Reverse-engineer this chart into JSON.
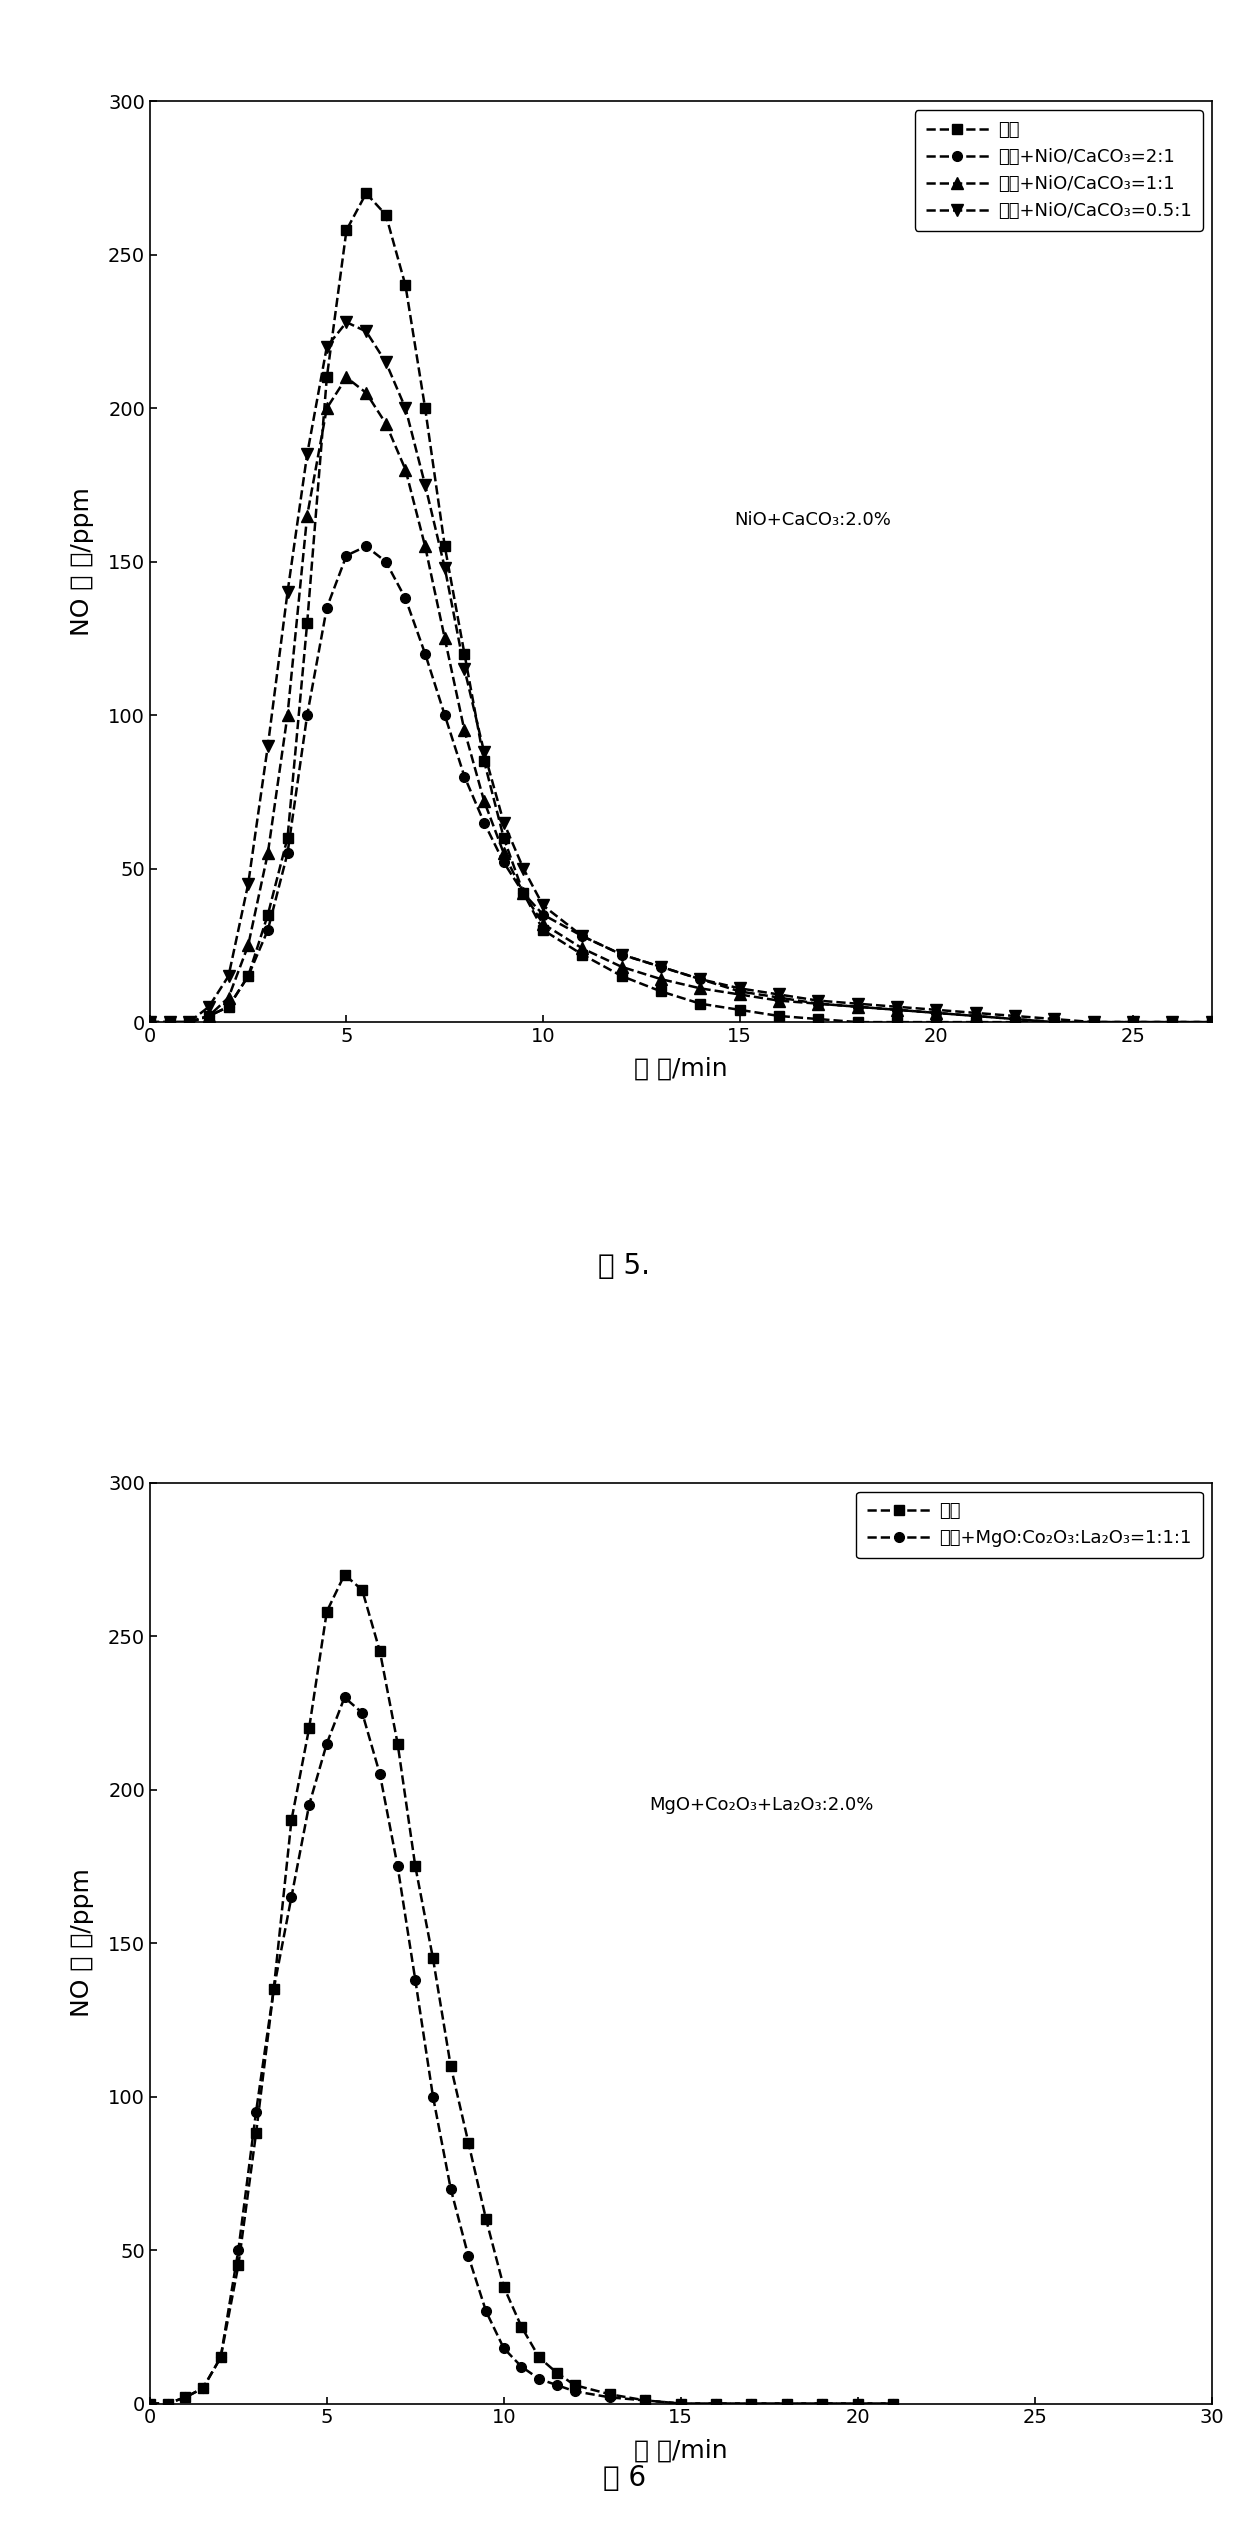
{
  "fig5": {
    "title": "图 5.",
    "xlabel": "时 间/min",
    "ylabel": "NO 浓 度/ppm",
    "xlim": [
      0,
      27
    ],
    "ylim": [
      0,
      300
    ],
    "xticks": [
      0,
      5,
      10,
      15,
      20,
      25
    ],
    "yticks": [
      0,
      50,
      100,
      150,
      200,
      250,
      300
    ],
    "annotation": "NiO+CaCO₃:2.0%",
    "series": [
      {
        "label": "焦炭",
        "marker": "s",
        "linestyle": "--",
        "color": "black",
        "x": [
          0,
          0.5,
          1,
          1.5,
          2,
          2.5,
          3,
          3.5,
          4,
          4.5,
          5,
          5.5,
          6,
          6.5,
          7,
          7.5,
          8,
          8.5,
          9,
          9.5,
          10,
          11,
          12,
          13,
          14,
          15,
          16,
          17,
          18,
          19,
          20,
          21,
          22,
          23,
          24,
          25,
          26,
          27
        ],
        "y": [
          0,
          0,
          0,
          2,
          5,
          15,
          35,
          60,
          130,
          210,
          258,
          270,
          263,
          240,
          200,
          155,
          120,
          85,
          60,
          42,
          30,
          22,
          15,
          10,
          6,
          4,
          2,
          1,
          0,
          0,
          0,
          0,
          0,
          0,
          0,
          0,
          0,
          0
        ]
      },
      {
        "label": "焦炭+NiO/CaCO₃=2:1",
        "marker": "o",
        "linestyle": "--",
        "color": "black",
        "x": [
          0,
          0.5,
          1,
          1.5,
          2,
          2.5,
          3,
          3.5,
          4,
          4.5,
          5,
          5.5,
          6,
          6.5,
          7,
          7.5,
          8,
          8.5,
          9,
          9.5,
          10,
          11,
          12,
          13,
          14,
          15,
          16,
          17,
          18,
          19,
          20,
          21,
          22,
          23,
          24,
          25,
          26,
          27
        ],
        "y": [
          0,
          0,
          0,
          2,
          5,
          15,
          30,
          55,
          100,
          135,
          152,
          155,
          150,
          138,
          120,
          100,
          80,
          65,
          52,
          42,
          35,
          28,
          22,
          18,
          14,
          10,
          8,
          6,
          5,
          4,
          3,
          2,
          1,
          0,
          0,
          0,
          0,
          0
        ]
      },
      {
        "label": "焦炭+NiO/CaCO₃=1:1",
        "marker": "^",
        "linestyle": "--",
        "color": "black",
        "x": [
          0,
          0.5,
          1,
          1.5,
          2,
          2.5,
          3,
          3.5,
          4,
          4.5,
          5,
          5.5,
          6,
          6.5,
          7,
          7.5,
          8,
          8.5,
          9,
          9.5,
          10,
          11,
          12,
          13,
          14,
          15,
          16,
          17,
          18,
          19,
          20,
          21,
          22,
          23,
          24,
          25,
          26,
          27
        ],
        "y": [
          0,
          0,
          0,
          2,
          8,
          25,
          55,
          100,
          165,
          200,
          210,
          205,
          195,
          180,
          155,
          125,
          95,
          72,
          55,
          42,
          32,
          24,
          18,
          14,
          11,
          9,
          7,
          6,
          5,
          4,
          3,
          2,
          1,
          0,
          0,
          0,
          0,
          0
        ]
      },
      {
        "label": "焦炭+NiO/CaCO₃=0.5:1",
        "marker": "v",
        "linestyle": "--",
        "color": "black",
        "x": [
          0,
          0.5,
          1,
          1.5,
          2,
          2.5,
          3,
          3.5,
          4,
          4.5,
          5,
          5.5,
          6,
          6.5,
          7,
          7.5,
          8,
          8.5,
          9,
          9.5,
          10,
          11,
          12,
          13,
          14,
          15,
          16,
          17,
          18,
          19,
          20,
          21,
          22,
          23,
          24,
          25,
          26,
          27
        ],
        "y": [
          0,
          0,
          0,
          5,
          15,
          45,
          90,
          140,
          185,
          220,
          228,
          225,
          215,
          200,
          175,
          148,
          115,
          88,
          65,
          50,
          38,
          28,
          22,
          18,
          14,
          11,
          9,
          7,
          6,
          5,
          4,
          3,
          2,
          1,
          0,
          0,
          0,
          0
        ]
      }
    ]
  },
  "fig6": {
    "title": "图 6",
    "xlabel": "时 间/min",
    "ylabel": "NO 浓 度/ppm",
    "xlim": [
      0,
      30
    ],
    "ylim": [
      0,
      300
    ],
    "xticks": [
      0,
      5,
      10,
      15,
      20,
      25,
      30
    ],
    "yticks": [
      0,
      50,
      100,
      150,
      200,
      250,
      300
    ],
    "annotation": "MgO+Co₂O₃+La₂O₃:2.0%",
    "series": [
      {
        "label": "焦炭",
        "marker": "s",
        "linestyle": "--",
        "color": "black",
        "x": [
          0,
          0.5,
          1,
          1.5,
          2,
          2.5,
          3,
          3.5,
          4,
          4.5,
          5,
          5.5,
          6,
          6.5,
          7,
          7.5,
          8,
          8.5,
          9,
          9.5,
          10,
          10.5,
          11,
          11.5,
          12,
          13,
          14,
          15,
          16,
          17,
          18,
          19,
          20,
          21
        ],
        "y": [
          0,
          0,
          2,
          5,
          15,
          45,
          88,
          135,
          190,
          220,
          258,
          270,
          265,
          245,
          215,
          175,
          145,
          110,
          85,
          60,
          38,
          25,
          15,
          10,
          6,
          3,
          1,
          0,
          0,
          0,
          0,
          0,
          0,
          0
        ]
      },
      {
        "label": "焦炭+MgO:Co₂O₃:La₂O₃=1:1:1",
        "marker": "o",
        "linestyle": "--",
        "color": "black",
        "x": [
          0,
          0.5,
          1,
          1.5,
          2,
          2.5,
          3,
          3.5,
          4,
          4.5,
          5,
          5.5,
          6,
          6.5,
          7,
          7.5,
          8,
          8.5,
          9,
          9.5,
          10,
          10.5,
          11,
          11.5,
          12,
          13,
          14,
          15,
          16,
          17,
          18,
          19,
          20,
          21
        ],
        "y": [
          0,
          0,
          2,
          5,
          15,
          50,
          95,
          135,
          165,
          195,
          215,
          230,
          225,
          205,
          175,
          138,
          100,
          70,
          48,
          30,
          18,
          12,
          8,
          6,
          4,
          2,
          1,
          0,
          0,
          0,
          0,
          0,
          0,
          0
        ]
      }
    ]
  }
}
